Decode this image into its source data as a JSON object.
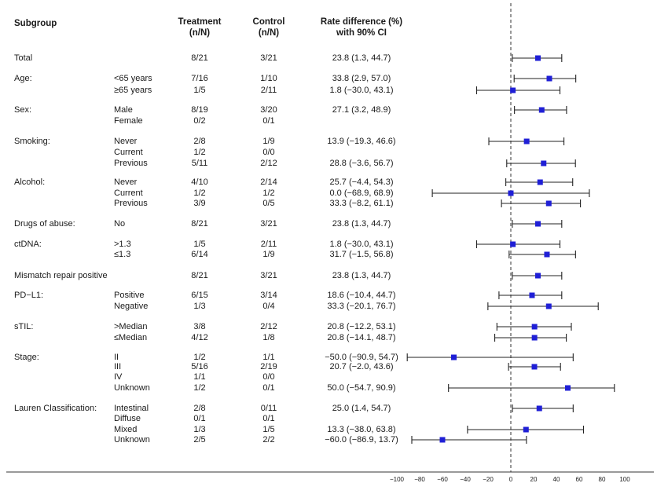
{
  "chart_data": {
    "type": "forest",
    "headers": {
      "subgroup": "Subgroup",
      "treatment": [
        "Treatment",
        "(n/N)"
      ],
      "control": [
        "Control",
        "(n/N)"
      ],
      "rate": [
        "Rate difference (%)",
        "with 90% CI"
      ]
    },
    "x_ticks": [
      "−100",
      "−80",
      "−60",
      "−40",
      "−20",
      "0",
      "20",
      "40",
      "60",
      "80",
      "100"
    ],
    "xlim": [
      -100,
      100
    ],
    "reference_line": 0,
    "marker_color": "#1f1fd6",
    "rows": [
      {
        "group": "Total",
        "sub": "",
        "treatment": "8/21",
        "control": "3/21",
        "rate_text": "23.8 (1.3, 44.7)",
        "est": 23.8,
        "lo": 1.3,
        "hi": 44.7
      },
      {
        "group": "Age:",
        "sub": "<65 years",
        "treatment": "7/16",
        "control": "1/10",
        "rate_text": "33.8 (2.9, 57.0)",
        "est": 33.8,
        "lo": 2.9,
        "hi": 57.0
      },
      {
        "group": "",
        "sub": "≥65 years",
        "treatment": "1/5",
        "control": "2/11",
        "rate_text": "1.8 (−30.0, 43.1)",
        "est": 1.8,
        "lo": -30.0,
        "hi": 43.1
      },
      {
        "group": "Sex:",
        "sub": "Male",
        "treatment": "8/19",
        "control": "3/20",
        "rate_text": "27.1 (3.2, 48.9)",
        "est": 27.1,
        "lo": 3.2,
        "hi": 48.9
      },
      {
        "group": "",
        "sub": "Female",
        "treatment": "0/2",
        "control": "0/1",
        "rate_text": "",
        "est": null,
        "lo": null,
        "hi": null
      },
      {
        "group": "Smoking:",
        "sub": "Never",
        "treatment": "2/8",
        "control": "1/9",
        "rate_text": "13.9 (−19.3, 46.6)",
        "est": 13.9,
        "lo": -19.3,
        "hi": 46.6
      },
      {
        "group": "",
        "sub": "Current",
        "treatment": "1/2",
        "control": "0/0",
        "rate_text": "",
        "est": null,
        "lo": null,
        "hi": null
      },
      {
        "group": "",
        "sub": "Previous",
        "treatment": "5/11",
        "control": "2/12",
        "rate_text": "28.8 (−3.6, 56.7)",
        "est": 28.8,
        "lo": -3.6,
        "hi": 56.7
      },
      {
        "group": "Alcohol:",
        "sub": "Never",
        "treatment": "4/10",
        "control": "2/14",
        "rate_text": "25.7 (−4.4, 54.3)",
        "est": 25.7,
        "lo": -4.4,
        "hi": 54.3
      },
      {
        "group": "",
        "sub": "Current",
        "treatment": "1/2",
        "control": "1/2",
        "rate_text": "0.0 (−68.9, 68.9)",
        "est": 0.0,
        "lo": -68.9,
        "hi": 68.9
      },
      {
        "group": "",
        "sub": "Previous",
        "treatment": "3/9",
        "control": "0/5",
        "rate_text": "33.3 (−8.2, 61.1)",
        "est": 33.3,
        "lo": -8.2,
        "hi": 61.1
      },
      {
        "group": "Drugs of abuse:",
        "sub": "No",
        "treatment": "8/21",
        "control": "3/21",
        "rate_text": "23.8 (1.3, 44.7)",
        "est": 23.8,
        "lo": 1.3,
        "hi": 44.7
      },
      {
        "group": "ctDNA:",
        "sub": ">1.3",
        "treatment": "1/5",
        "control": "2/11",
        "rate_text": "1.8 (−30.0, 43.1)",
        "est": 1.8,
        "lo": -30.0,
        "hi": 43.1
      },
      {
        "group": "",
        "sub": "≤1.3",
        "treatment": "6/14",
        "control": "1/9",
        "rate_text": "31.7 (−1.5, 56.8)",
        "est": 31.7,
        "lo": -1.5,
        "hi": 56.8
      },
      {
        "group": "Mismatch repair positive",
        "sub": "",
        "treatment": "8/21",
        "control": "3/21",
        "rate_text": "23.8 (1.3, 44.7)",
        "est": 23.8,
        "lo": 1.3,
        "hi": 44.7
      },
      {
        "group": "PD−L1:",
        "sub": "Positive",
        "treatment": "6/15",
        "control": "3/14",
        "rate_text": "18.6 (−10.4, 44.7)",
        "est": 18.6,
        "lo": -10.4,
        "hi": 44.7
      },
      {
        "group": "",
        "sub": "Negative",
        "treatment": "1/3",
        "control": "0/4",
        "rate_text": "33.3 (−20.1, 76.7)",
        "est": 33.3,
        "lo": -20.1,
        "hi": 76.7
      },
      {
        "group": "sTIL:",
        "sub": ">Median",
        "treatment": "3/8",
        "control": "2/12",
        "rate_text": "20.8 (−12.2, 53.1)",
        "est": 20.8,
        "lo": -12.2,
        "hi": 53.1
      },
      {
        "group": "",
        "sub": "≤Median",
        "treatment": "4/12",
        "control": "1/8",
        "rate_text": "20.8 (−14.1, 48.7)",
        "est": 20.8,
        "lo": -14.1,
        "hi": 48.7
      },
      {
        "group": "Stage:",
        "sub": "II",
        "treatment": "1/2",
        "control": "1/1",
        "rate_text": "−50.0 (−90.9, 54.7)",
        "est": -50.0,
        "lo": -90.9,
        "hi": 54.7
      },
      {
        "group": "",
        "sub": "III",
        "treatment": "5/16",
        "control": "2/19",
        "rate_text": "20.7 (−2.0, 43.6)",
        "est": 20.7,
        "lo": -2.0,
        "hi": 43.6
      },
      {
        "group": "",
        "sub": "IV",
        "treatment": "1/1",
        "control": "0/0",
        "rate_text": "",
        "est": null,
        "lo": null,
        "hi": null
      },
      {
        "group": "",
        "sub": "Unknown",
        "treatment": "1/2",
        "control": "0/1",
        "rate_text": "50.0 (−54.7, 90.9)",
        "est": 50.0,
        "lo": -54.7,
        "hi": 90.9
      },
      {
        "group": "Lauren Classification:",
        "sub": "Intestinal",
        "treatment": "2/8",
        "control": "0/11",
        "rate_text": "25.0 (1.4, 54.7)",
        "est": 25.0,
        "lo": 1.4,
        "hi": 54.7
      },
      {
        "group": "",
        "sub": "Diffuse",
        "treatment": "0/1",
        "control": "0/1",
        "rate_text": "",
        "est": null,
        "lo": null,
        "hi": null
      },
      {
        "group": "",
        "sub": "Mixed",
        "treatment": "1/3",
        "control": "1/5",
        "rate_text": "13.3 (−38.0, 63.8)",
        "est": 13.3,
        "lo": -38.0,
        "hi": 63.8
      },
      {
        "group": "",
        "sub": "Unknown",
        "treatment": "2/5",
        "control": "2/2",
        "rate_text": "−60.0 (−86.9, 13.7)",
        "est": -60.0,
        "lo": -86.9,
        "hi": 13.7
      }
    ]
  }
}
